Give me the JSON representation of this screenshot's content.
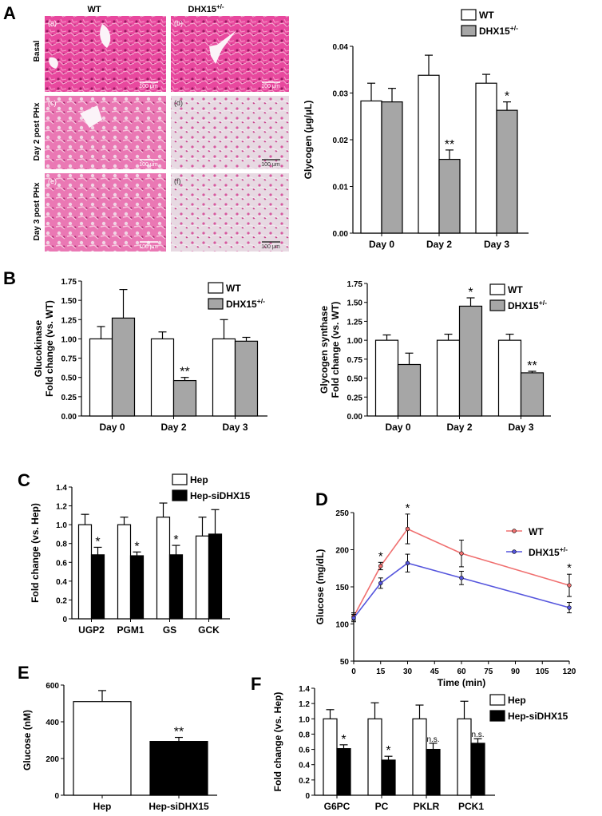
{
  "panel_labels": [
    "A",
    "B",
    "C",
    "D",
    "E",
    "F"
  ],
  "micrographs": {
    "col_headers": [
      "WT",
      "DHX15"
    ],
    "col_header_sup": "+/-",
    "row_headers": [
      "Basal",
      "Day 2 post PHx",
      "Day 3 post PHx"
    ],
    "tiles": [
      {
        "tag": "(a)",
        "scale": "100 μm"
      },
      {
        "tag": "(b)",
        "scale": "100 μm"
      },
      {
        "tag": "(c)",
        "scale": "100 μm"
      },
      {
        "tag": "(d)",
        "scale": "100 μm"
      },
      {
        "tag": "(e)",
        "scale": "100 μm"
      },
      {
        "tag": "(f)",
        "scale": "100 μm"
      }
    ],
    "colors": {
      "stain": "#e0459b",
      "pale": "#e6dbe3"
    }
  },
  "chart_data": [
    {
      "id": "A",
      "type": "bar",
      "categories": [
        "Day 0",
        "Day 2",
        "Day 3"
      ],
      "ylabel": "Glycogen (μg/μL)",
      "ylim": [
        0,
        0.04
      ],
      "yticks": [
        "0.00",
        "0.01",
        "0.02",
        "0.03",
        "0.04"
      ],
      "legend": "top-right",
      "series": [
        {
          "name": "WT",
          "name_sup": "",
          "fill": "#ffffff",
          "values": [
            0.0283,
            0.0338,
            0.0321
          ],
          "errors": [
            0.0038,
            0.0043,
            0.0019
          ],
          "marks": [
            "",
            "",
            ""
          ]
        },
        {
          "name": "DHX15",
          "name_sup": "+/-",
          "fill": "#a6a6a6",
          "values": [
            0.0281,
            0.0158,
            0.0263
          ],
          "errors": [
            0.0029,
            0.002,
            0.0018
          ],
          "marks": [
            "",
            "**",
            "*"
          ]
        }
      ]
    },
    {
      "id": "B1",
      "type": "bar",
      "categories": [
        "Day 0",
        "Day 2",
        "Day 3"
      ],
      "ylabel": "Glucokinase",
      "ylabel2": "Fold change (vs. WT)",
      "ylim": [
        0,
        1.75
      ],
      "yticks": [
        "0.00",
        "0.25",
        "0.50",
        "0.75",
        "1.00",
        "1.25",
        "1.50",
        "1.75"
      ],
      "legend": "top-right",
      "series": [
        {
          "name": "WT",
          "name_sup": "",
          "fill": "#ffffff",
          "values": [
            1.0,
            1.0,
            1.0
          ],
          "errors": [
            0.16,
            0.09,
            0.25
          ],
          "marks": [
            "",
            "",
            ""
          ]
        },
        {
          "name": "DHX15",
          "name_sup": "+/-",
          "fill": "#a6a6a6",
          "values": [
            1.27,
            0.46,
            0.97
          ],
          "errors": [
            0.37,
            0.04,
            0.05
          ],
          "marks": [
            "",
            "**",
            ""
          ]
        }
      ]
    },
    {
      "id": "B2",
      "type": "bar",
      "categories": [
        "Day 0",
        "Day 2",
        "Day 3"
      ],
      "ylabel": "Glycogen synthase",
      "ylabel2": "Fold change (vs. WT)",
      "ylim": [
        0,
        1.75
      ],
      "yticks": [
        "0.00",
        "0.25",
        "0.50",
        "0.75",
        "1.00",
        "1.25",
        "1.50",
        "1.75"
      ],
      "legend": "top-right",
      "series": [
        {
          "name": "WT",
          "name_sup": "",
          "fill": "#ffffff",
          "values": [
            1.0,
            1.0,
            1.0
          ],
          "errors": [
            0.07,
            0.08,
            0.08
          ],
          "marks": [
            "",
            "",
            ""
          ]
        },
        {
          "name": "DHX15",
          "name_sup": "+/-",
          "fill": "#a6a6a6",
          "values": [
            0.68,
            1.45,
            0.57
          ],
          "errors": [
            0.15,
            0.11,
            0.02
          ],
          "marks": [
            "",
            "*",
            "**"
          ]
        }
      ]
    },
    {
      "id": "C",
      "type": "bar",
      "categories": [
        "UGP2",
        "PGM1",
        "GS",
        "GCK"
      ],
      "ylabel": "Fold change (vs. Hep)",
      "ylim": [
        0,
        1.4
      ],
      "yticks": [
        "0",
        "0.2",
        "0.4",
        "0.6",
        "0.8",
        "1.0",
        "1.2",
        "1.4"
      ],
      "legend": "top-right",
      "series": [
        {
          "name": "Hep",
          "name_sup": "",
          "fill": "#ffffff",
          "values": [
            1.0,
            1.0,
            1.08,
            0.88
          ],
          "errors": [
            0.11,
            0.08,
            0.15,
            0.2
          ],
          "marks": [
            "",
            "",
            "",
            ""
          ]
        },
        {
          "name": "Hep-siDHX15",
          "name_sup": "",
          "fill": "#000000",
          "values": [
            0.68,
            0.67,
            0.68,
            0.9
          ],
          "errors": [
            0.08,
            0.04,
            0.1,
            0.26
          ],
          "marks": [
            "*",
            "*",
            "*",
            ""
          ]
        }
      ]
    },
    {
      "id": "D",
      "type": "line",
      "x": [
        0,
        15,
        30,
        60,
        120
      ],
      "xlabel": "Time (min)",
      "ylabel": "Glucose (mg/dL)",
      "xlim": [
        0,
        120
      ],
      "ylim": [
        50,
        250
      ],
      "xticks": [
        0,
        15,
        30,
        45,
        60,
        75,
        90,
        105,
        120
      ],
      "yticks": [
        50,
        100,
        150,
        200,
        250
      ],
      "legend": "top-right",
      "series": [
        {
          "name": "WT",
          "name_sup": "",
          "color": "#f07070",
          "values": [
            110,
            178,
            228,
            195,
            152
          ],
          "errors": [
            5,
            5,
            20,
            18,
            15
          ],
          "marks": [
            "",
            "*",
            "*",
            "",
            "*"
          ]
        },
        {
          "name": "DHX15",
          "name_sup": "+/-",
          "color": "#5555dd",
          "values": [
            108,
            155,
            182,
            162,
            122
          ],
          "errors": [
            5,
            7,
            12,
            9,
            7
          ],
          "marks": [
            "",
            "",
            "",
            "",
            ""
          ]
        }
      ]
    },
    {
      "id": "E",
      "type": "bar",
      "categories": [
        "Hep",
        "Hep-siDHX15"
      ],
      "ylabel": "Glucose (nM)",
      "ylim": [
        0,
        600
      ],
      "yticks": [
        "0",
        "200",
        "400",
        "600"
      ],
      "series": [
        {
          "name": "",
          "name_sup": "",
          "fill": "#ffffff",
          "values": [
            510,
            293
          ],
          "errors": [
            60,
            22
          ],
          "marks": [
            "",
            "**"
          ],
          "fills": [
            "#ffffff",
            "#000000"
          ]
        }
      ]
    },
    {
      "id": "F",
      "type": "bar",
      "categories": [
        "G6PC",
        "PC",
        "PKLR",
        "PCK1"
      ],
      "ylabel": "Fold change (vs. Hep)",
      "ylim": [
        0,
        1.4
      ],
      "yticks": [
        "0",
        "0.2",
        "0.4",
        "0.6",
        "0.8",
        "1.0",
        "1.2",
        "1.4"
      ],
      "legend": "top-right",
      "series": [
        {
          "name": "Hep",
          "name_sup": "",
          "fill": "#ffffff",
          "values": [
            1.0,
            1.0,
            1.0,
            1.0
          ],
          "errors": [
            0.12,
            0.21,
            0.18,
            0.23
          ],
          "marks": [
            "",
            "",
            "",
            ""
          ]
        },
        {
          "name": "Hep-siDHX15",
          "name_sup": "",
          "fill": "#000000",
          "values": [
            0.61,
            0.46,
            0.6,
            0.68
          ],
          "errors": [
            0.05,
            0.05,
            0.08,
            0.06
          ],
          "marks": [
            "*",
            "*",
            "n.s.",
            "n.s."
          ]
        }
      ]
    }
  ]
}
